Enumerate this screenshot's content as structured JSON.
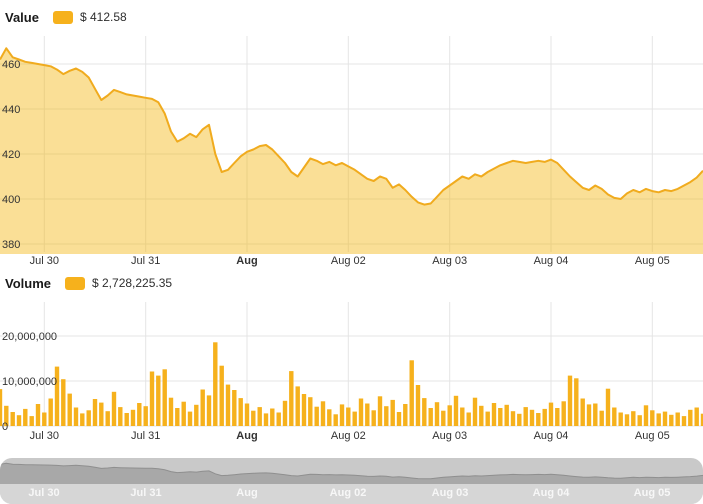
{
  "colors": {
    "accent": "#f6b11c",
    "line": "#f0ab1e",
    "area_fill": "rgba(244,184,23,0.45)",
    "grid": "#e4e4e4",
    "axis_text": "#333333",
    "navigator_bg": "#c9c9c9",
    "navigator_band": "#d6d6d6",
    "navigator_fill": "#a8a8a8",
    "navigator_line": "#8f8f8f",
    "navigator_text": "#f7f7f7"
  },
  "value_legend": {
    "label": "Value",
    "amount": "$ 412.58"
  },
  "volume_legend": {
    "label": "Volume",
    "amount": "$ 2,728,225.35"
  },
  "chart_data": [
    {
      "type": "area",
      "title": "Value",
      "unit": "USD",
      "current_value": 412.58,
      "categories": [
        "Jul 30",
        "Jul 31",
        "Aug",
        "Aug 02",
        "Aug 03",
        "Aug 04",
        "Aug 05"
      ],
      "emphasized_category": "Aug",
      "yticks": [
        380,
        400,
        420,
        440,
        460
      ],
      "ylim": [
        376,
        475
      ],
      "grid": true,
      "legend_position": "top-left",
      "values": [
        462,
        467,
        463,
        462,
        461,
        460.5,
        460,
        459.5,
        459,
        457.5,
        455.5,
        457,
        458,
        456.5,
        454,
        449,
        444,
        446,
        448.5,
        447.5,
        446.5,
        446,
        445.5,
        445,
        444.5,
        443,
        438,
        430,
        425.5,
        427,
        429,
        427.5,
        431,
        433,
        420,
        412,
        413,
        416,
        419,
        421,
        422,
        423.5,
        424,
        422,
        419,
        416,
        412,
        410,
        414,
        418,
        417,
        415.5,
        416.5,
        415,
        416,
        414.5,
        413,
        411,
        409,
        408,
        410,
        409,
        405,
        406.5,
        404,
        401,
        398.5,
        397.5,
        398,
        401,
        404,
        406,
        408,
        410,
        409,
        411,
        410,
        412,
        413.5,
        415,
        416,
        417,
        416.5,
        416,
        416.5,
        417,
        416.5,
        417.5,
        416,
        413,
        410,
        407.5,
        405,
        404,
        406,
        404.5,
        402,
        400.5,
        400,
        402.5,
        404,
        403,
        404.5,
        403.5,
        403,
        404,
        403.5,
        404.5,
        406,
        407.5,
        409.5,
        412.58
      ]
    },
    {
      "type": "bar",
      "title": "Volume",
      "unit": "USD",
      "current_value": 2728225.35,
      "categories": [
        "Jul 30",
        "Jul 31",
        "Aug",
        "Aug 02",
        "Aug 03",
        "Aug 04",
        "Aug 05"
      ],
      "emphasized_category": "Aug",
      "yticks": [
        0,
        10000000,
        20000000
      ],
      "ytick_labels": [
        "0",
        "10,000,000",
        "20,000,000"
      ],
      "ylim": [
        0,
        29000000
      ],
      "grid": true,
      "values": [
        8200000,
        4500000,
        3100000,
        2400000,
        3800000,
        2200000,
        4900000,
        3000000,
        6100000,
        13200000,
        10400000,
        7200000,
        4100000,
        2800000,
        3500000,
        6000000,
        5200000,
        3300000,
        7600000,
        4200000,
        2900000,
        3600000,
        5100000,
        4400000,
        12100000,
        11200000,
        12600000,
        6300000,
        4000000,
        5400000,
        3200000,
        4700000,
        8100000,
        6800000,
        18600000,
        13400000,
        9200000,
        8000000,
        6200000,
        5000000,
        3400000,
        4200000,
        2800000,
        3900000,
        3000000,
        5600000,
        12200000,
        8800000,
        7100000,
        6400000,
        4300000,
        5500000,
        3700000,
        2600000,
        4800000,
        4100000,
        3200000,
        6100000,
        5000000,
        3500000,
        6600000,
        4400000,
        5800000,
        3100000,
        4900000,
        14600000,
        9100000,
        6200000,
        4000000,
        5300000,
        3400000,
        4600000,
        6700000,
        4100000,
        3000000,
        6300000,
        4500000,
        3200000,
        5100000,
        4000000,
        4700000,
        3300000,
        2700000,
        4200000,
        3600000,
        2900000,
        3800000,
        5200000,
        4000000,
        5500000,
        11200000,
        10600000,
        6100000,
        4800000,
        5000000,
        3400000,
        8300000,
        4100000,
        3000000,
        2600000,
        3300000,
        2400000,
        4600000,
        3500000,
        2800000,
        3200000,
        2500000,
        3000000,
        2200000,
        3600000,
        4100000,
        2728225.35
      ]
    },
    {
      "type": "area",
      "role": "range-navigator",
      "categories": [
        "Jul 30",
        "Jul 31",
        "Aug",
        "Aug 02",
        "Aug 03",
        "Aug 04",
        "Aug 05"
      ],
      "series_source": "Value",
      "values": []
    }
  ]
}
